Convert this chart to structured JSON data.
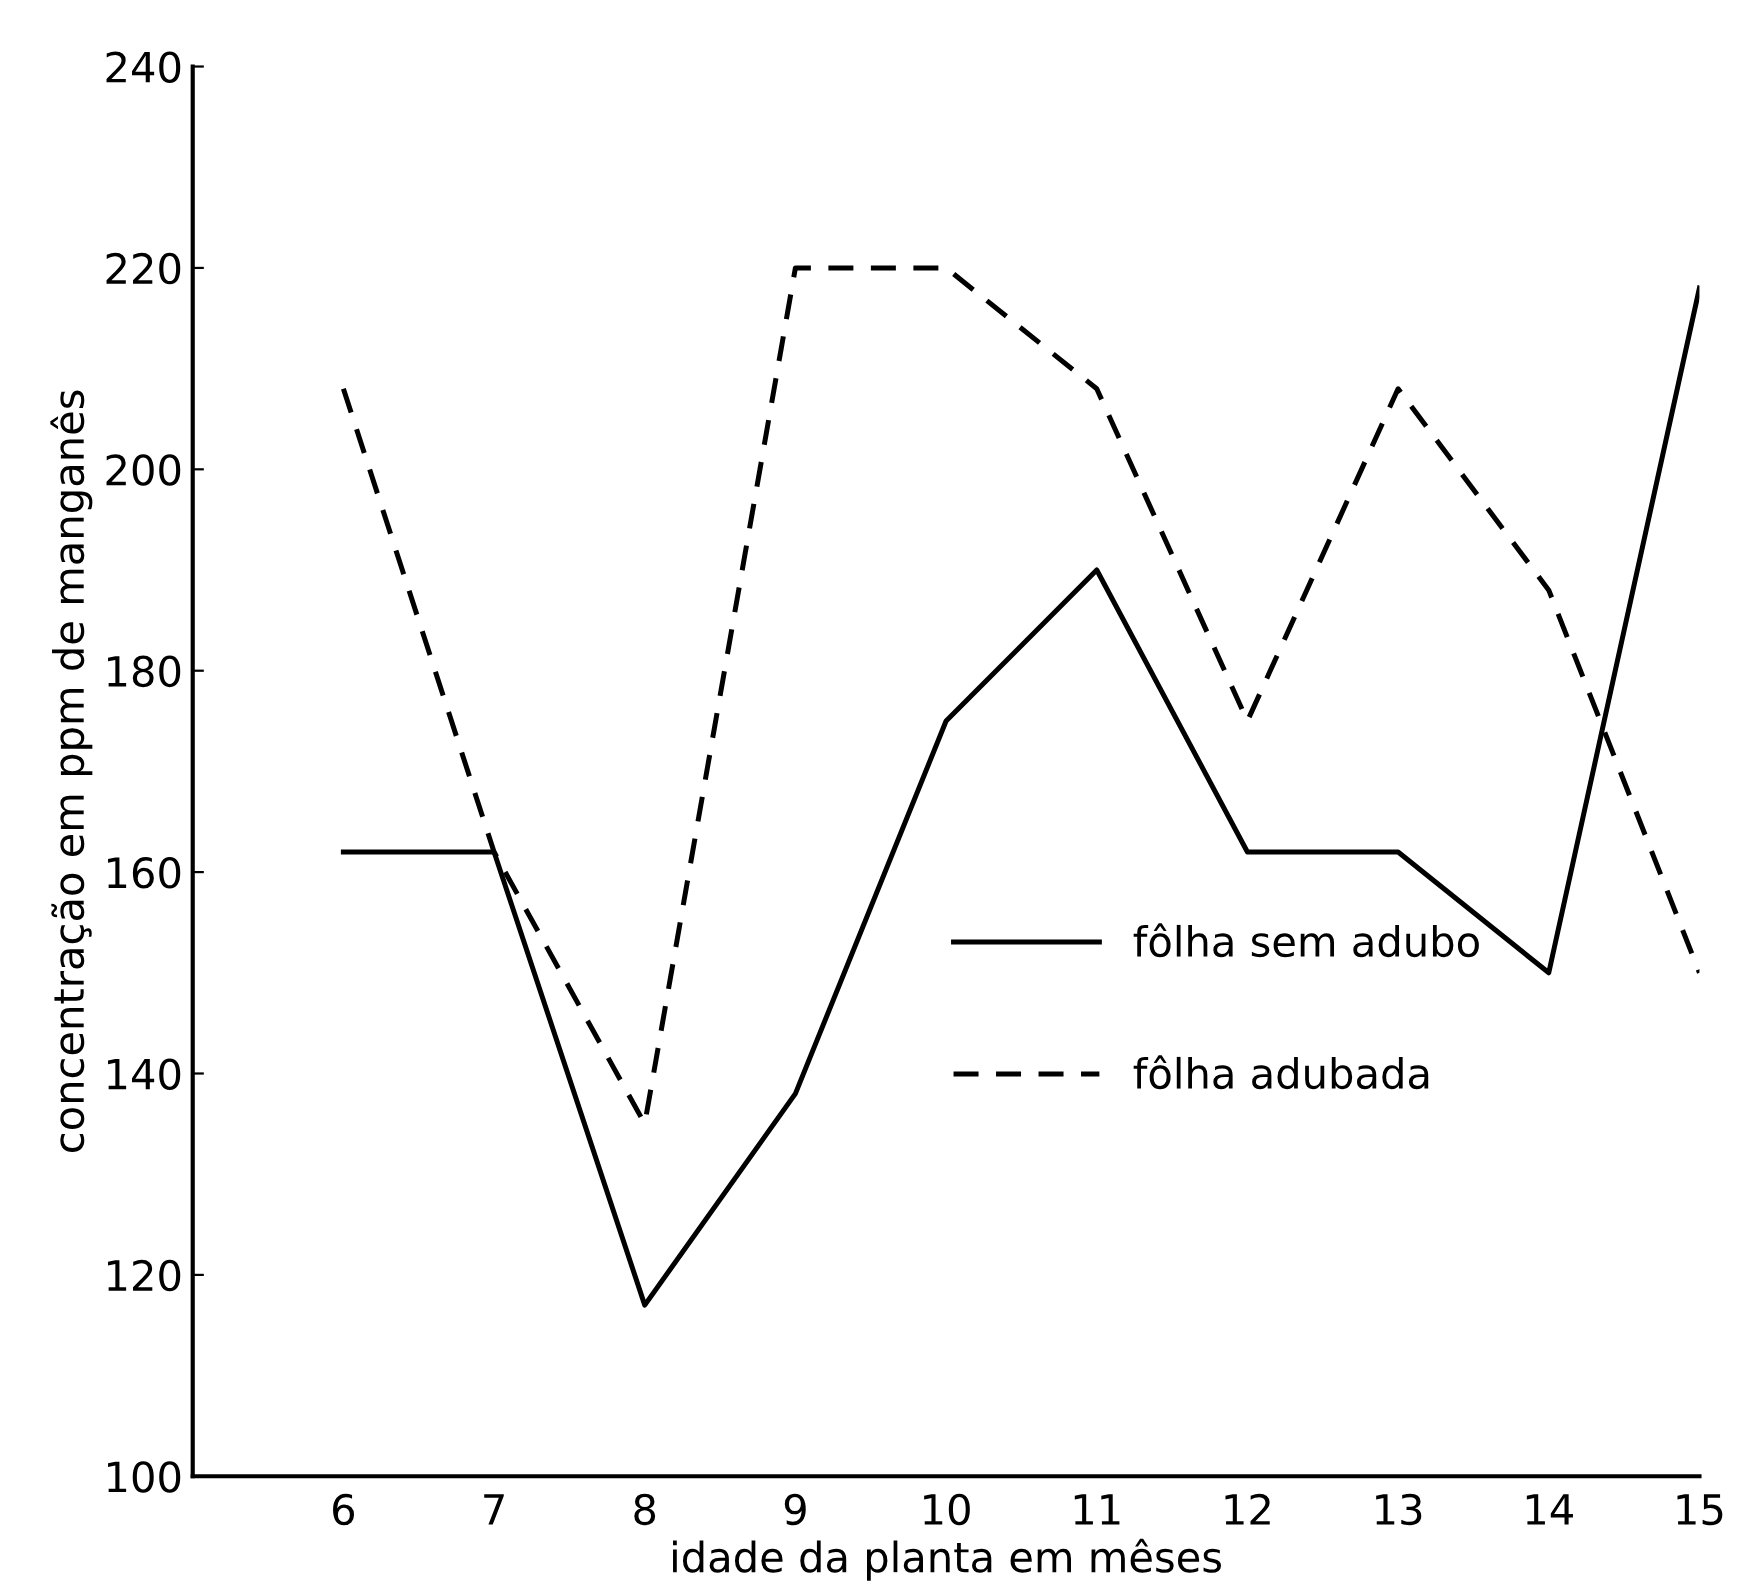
{
  "chart_data": {
    "type": "line",
    "xlabel": "idade da planta em mêses",
    "ylabel": "concentração em ppm de manganês",
    "x": [
      6,
      7,
      8,
      9,
      10,
      11,
      12,
      13,
      14,
      15
    ],
    "series": [
      {
        "name": "fôlha sem adubo",
        "color": "#000000",
        "line_style": "solid",
        "values": [
          162,
          162,
          117,
          138,
          175,
          190,
          162,
          162,
          150,
          218
        ]
      },
      {
        "name": "fôlha adubada",
        "color": "#000000",
        "line_style": "dashed",
        "values": [
          208,
          162,
          135,
          220,
          220,
          208,
          175,
          208,
          188,
          150
        ]
      }
    ],
    "xlim": [
      5,
      15
    ],
    "xticks": [
      6,
      7,
      8,
      9,
      10,
      11,
      12,
      13,
      14,
      15
    ],
    "ylim": [
      100,
      240
    ],
    "yticks": [
      100,
      120,
      140,
      160,
      180,
      200,
      220,
      240
    ],
    "grid": false,
    "legend": "right",
    "marker": "none"
  }
}
